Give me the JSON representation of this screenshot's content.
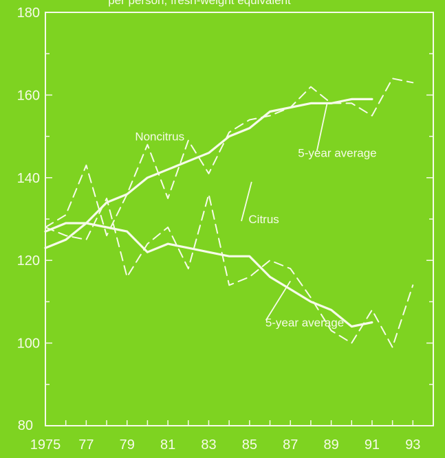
{
  "page": {
    "background": "#7ed321",
    "ink": "#f6fbe9",
    "title_fragment": "per person, fresh-weight equivalent"
  },
  "chart_data": {
    "type": "line",
    "title": "",
    "xlabel": "",
    "ylabel": "",
    "xlim": [
      1975,
      1994
    ],
    "ylim": [
      80,
      180
    ],
    "y_ticks": [
      100,
      120,
      140,
      160,
      180
    ],
    "y_tick_labels": [
      "100",
      "120",
      "140",
      "160",
      "180"
    ],
    "y_bottom_label": "80",
    "x_ticks": [
      1975,
      1977,
      1979,
      1981,
      1983,
      1985,
      1987,
      1989,
      1991,
      1993
    ],
    "x_tick_labels": [
      "1975",
      "77",
      "79",
      "81",
      "83",
      "85",
      "87",
      "89",
      "91",
      "93"
    ],
    "grid": false,
    "legend": "none",
    "series": [
      {
        "name": "Noncitrus",
        "style": "dashed",
        "x": [
          1975,
          1976,
          1977,
          1978,
          1979,
          1980,
          1981,
          1982,
          1983,
          1984,
          1985,
          1986,
          1987,
          1988,
          1989,
          1990,
          1991,
          1992,
          1993
        ],
        "values": [
          128,
          131,
          143,
          126,
          136,
          148,
          135,
          149,
          141,
          151,
          154,
          155,
          157,
          162,
          158,
          158,
          155,
          164,
          163
        ]
      },
      {
        "name": "Noncitrus 5-year average",
        "style": "solid",
        "x": [
          1975,
          1976,
          1977,
          1978,
          1979,
          1980,
          1981,
          1982,
          1983,
          1984,
          1985,
          1986,
          1987,
          1988,
          1989,
          1990,
          1991
        ],
        "values": [
          123,
          125,
          129,
          134,
          136,
          140,
          142,
          144,
          146,
          150,
          152,
          156,
          157,
          158,
          158,
          159,
          159
        ]
      },
      {
        "name": "Citrus",
        "style": "dashed",
        "x": [
          1975,
          1976,
          1977,
          1978,
          1979,
          1980,
          1981,
          1982,
          1983,
          1984,
          1985,
          1986,
          1987,
          1988,
          1989,
          1990,
          1991,
          1992,
          1993
        ],
        "values": [
          128,
          126,
          125,
          135,
          116,
          124,
          128,
          118,
          136,
          114,
          116,
          120,
          118,
          111,
          103,
          100,
          108,
          99,
          114
        ]
      },
      {
        "name": "Citrus 5-year average",
        "style": "solid",
        "x": [
          1975,
          1976,
          1977,
          1978,
          1979,
          1980,
          1981,
          1982,
          1983,
          1984,
          1985,
          1986,
          1987,
          1988,
          1989,
          1990,
          1991
        ],
        "values": [
          127,
          129,
          129,
          128,
          127,
          122,
          124,
          123,
          122,
          121,
          121,
          116,
          113,
          110,
          108,
          104,
          105
        ]
      }
    ],
    "annotations": [
      {
        "text": "Noncitrus",
        "x": 1980.6,
        "y": 149
      },
      {
        "text": "5-year average",
        "x": 1989.3,
        "y": 145
      },
      {
        "text": "Citrus",
        "x": 1985.7,
        "y": 129
      },
      {
        "text": "5-year average",
        "x": 1987.7,
        "y": 104
      }
    ]
  }
}
